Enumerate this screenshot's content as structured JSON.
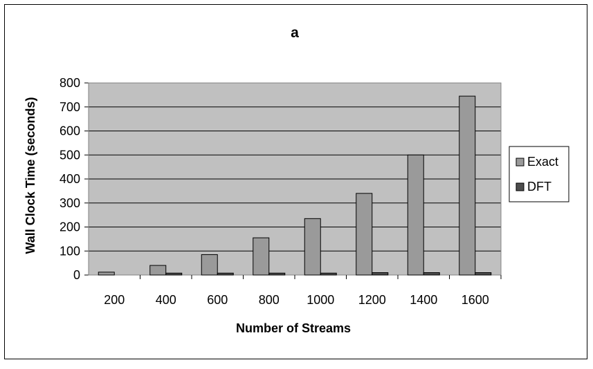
{
  "chart_data": {
    "type": "bar",
    "title": "a",
    "xlabel": "Number of Streams",
    "ylabel": "Wall Clock Time (seconds)",
    "categories": [
      "200",
      "400",
      "600",
      "800",
      "1000",
      "1200",
      "1400",
      "1600"
    ],
    "series": [
      {
        "name": "Exact",
        "color": "#9a9a9a",
        "values": [
          12,
          40,
          85,
          155,
          235,
          340,
          500,
          745
        ]
      },
      {
        "name": "DFT",
        "color": "#4d4d4d",
        "values": [
          0,
          8,
          8,
          8,
          8,
          10,
          10,
          10
        ]
      }
    ],
    "ylim": [
      0,
      800
    ],
    "yticks": [
      0,
      100,
      200,
      300,
      400,
      500,
      600,
      700,
      800
    ],
    "grid": true,
    "plot_background": "#c0c0c0",
    "legend_position": "right"
  }
}
